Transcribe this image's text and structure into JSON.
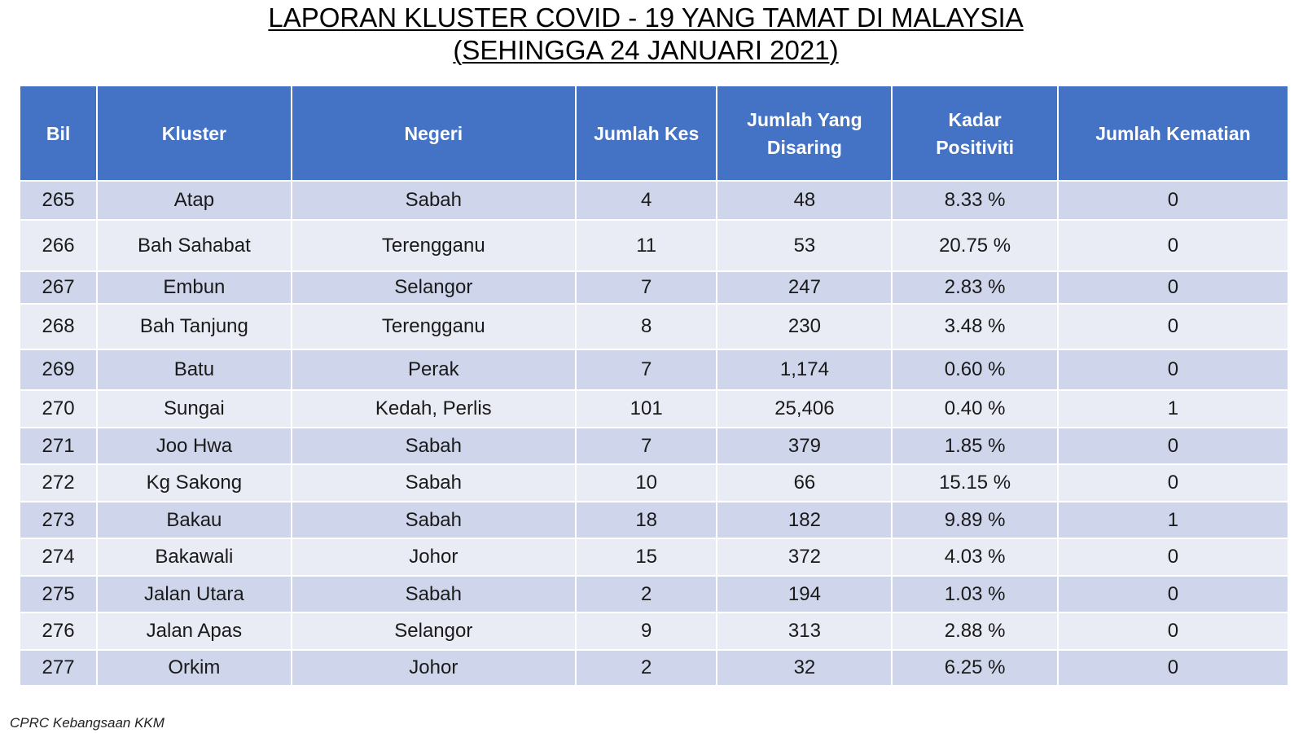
{
  "title": {
    "line1": "LAPORAN KLUSTER COVID - 19 YANG TAMAT DI MALAYSIA",
    "line2": "(SEHINGGA 24 JANUARI 2021)"
  },
  "table": {
    "headers": {
      "bil": "Bil",
      "kluster": "Kluster",
      "negeri": "Negeri",
      "jumlah_kes": "Jumlah Kes",
      "jumlah_disaring": "Jumlah Yang Disaring",
      "kadar_positiviti": "Kadar Positiviti",
      "jumlah_kematian": "Jumlah Kematian"
    },
    "rows": [
      {
        "bil": "265",
        "kluster": "Atap",
        "negeri": "Sabah",
        "kes": "4",
        "disaring": "48",
        "positiviti": "8.33 %",
        "kematian": "0"
      },
      {
        "bil": "266",
        "kluster": "Bah Sahabat",
        "negeri": "Terengganu",
        "kes": "11",
        "disaring": "53",
        "positiviti": "20.75 %",
        "kematian": "0"
      },
      {
        "bil": "267",
        "kluster": "Embun",
        "negeri": "Selangor",
        "kes": "7",
        "disaring": "247",
        "positiviti": "2.83 %",
        "kematian": "0"
      },
      {
        "bil": "268",
        "kluster": "Bah Tanjung",
        "negeri": "Terengganu",
        "kes": "8",
        "disaring": "230",
        "positiviti": "3.48 %",
        "kematian": "0"
      },
      {
        "bil": "269",
        "kluster": "Batu",
        "negeri": "Perak",
        "kes": "7",
        "disaring": "1,174",
        "positiviti": "0.60 %",
        "kematian": "0"
      },
      {
        "bil": "270",
        "kluster": "Sungai",
        "negeri": "Kedah, Perlis",
        "kes": "101",
        "disaring": "25,406",
        "positiviti": "0.40 %",
        "kematian": "1"
      },
      {
        "bil": "271",
        "kluster": "Joo Hwa",
        "negeri": "Sabah",
        "kes": "7",
        "disaring": "379",
        "positiviti": "1.85 %",
        "kematian": "0"
      },
      {
        "bil": "272",
        "kluster": "Kg Sakong",
        "negeri": "Sabah",
        "kes": "10",
        "disaring": "66",
        "positiviti": "15.15 %",
        "kematian": "0"
      },
      {
        "bil": "273",
        "kluster": "Bakau",
        "negeri": "Sabah",
        "kes": "18",
        "disaring": "182",
        "positiviti": "9.89 %",
        "kematian": "1"
      },
      {
        "bil": "274",
        "kluster": "Bakawali",
        "negeri": "Johor",
        "kes": "15",
        "disaring": "372",
        "positiviti": "4.03 %",
        "kematian": "0"
      },
      {
        "bil": "275",
        "kluster": "Jalan Utara",
        "negeri": "Sabah",
        "kes": "2",
        "disaring": "194",
        "positiviti": "1.03 %",
        "kematian": "0"
      },
      {
        "bil": "276",
        "kluster": "Jalan Apas",
        "negeri": "Selangor",
        "kes": "9",
        "disaring": "313",
        "positiviti": "2.88 %",
        "kematian": "0"
      },
      {
        "bil": "277",
        "kluster": "Orkim",
        "negeri": "Johor",
        "kes": "2",
        "disaring": "32",
        "positiviti": "6.25 %",
        "kematian": "0"
      }
    ]
  },
  "footer": {
    "source": "CPRC Kebangsaan KKM"
  },
  "colors": {
    "header_bg": "#4472c4",
    "row_dark": "#cfd5ea",
    "row_light": "#e9ebf5"
  }
}
